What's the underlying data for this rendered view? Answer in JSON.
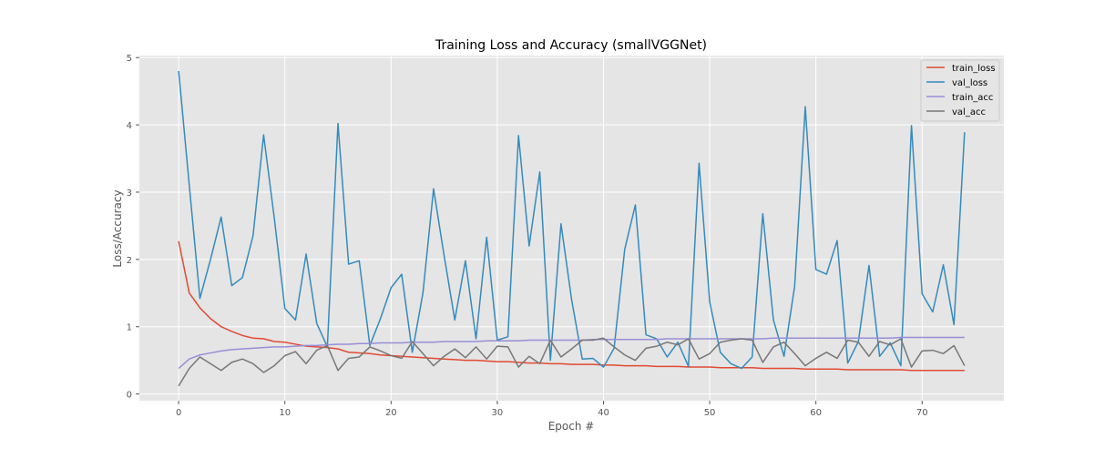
{
  "chart_data": {
    "type": "line",
    "title": "Training Loss and Accuracy (smallVGGNet)",
    "xlabel": "Epoch #",
    "ylabel": "Loss/Accuracy",
    "xlim": [
      -3.7,
      77.7
    ],
    "ylim": [
      -0.1,
      5.03
    ],
    "x_ticks": [
      0,
      10,
      20,
      30,
      40,
      50,
      60,
      70
    ],
    "y_ticks": [
      0,
      1,
      2,
      3,
      4,
      5
    ],
    "grid": true,
    "legend_position": "top-right",
    "series": [
      {
        "name": "train_loss",
        "color": "#E24A33",
        "values": [
          2.27,
          1.5,
          1.28,
          1.12,
          1.0,
          0.93,
          0.87,
          0.83,
          0.82,
          0.78,
          0.77,
          0.74,
          0.71,
          0.7,
          0.69,
          0.67,
          0.62,
          0.61,
          0.6,
          0.58,
          0.57,
          0.56,
          0.55,
          0.54,
          0.53,
          0.52,
          0.51,
          0.5,
          0.5,
          0.49,
          0.48,
          0.48,
          0.47,
          0.46,
          0.46,
          0.45,
          0.45,
          0.44,
          0.44,
          0.44,
          0.43,
          0.43,
          0.42,
          0.42,
          0.42,
          0.41,
          0.41,
          0.41,
          0.4,
          0.4,
          0.4,
          0.39,
          0.39,
          0.39,
          0.39,
          0.38,
          0.38,
          0.38,
          0.38,
          0.37,
          0.37,
          0.37,
          0.37,
          0.36,
          0.36,
          0.36,
          0.36,
          0.36,
          0.36,
          0.35,
          0.35,
          0.35,
          0.35,
          0.35,
          0.35
        ]
      },
      {
        "name": "val_loss",
        "color": "#348ABD",
        "values": [
          4.8,
          3.1,
          1.42,
          2.0,
          2.63,
          1.61,
          1.73,
          2.35,
          3.85,
          2.62,
          1.27,
          1.1,
          2.08,
          1.05,
          0.7,
          4.02,
          1.93,
          1.98,
          0.72,
          1.12,
          1.58,
          1.78,
          0.62,
          1.5,
          3.05,
          2.05,
          1.1,
          1.98,
          0.82,
          2.33,
          0.8,
          0.85,
          3.84,
          2.2,
          3.3,
          0.5,
          2.53,
          1.4,
          0.52,
          0.53,
          0.4,
          0.68,
          2.15,
          2.81,
          0.88,
          0.82,
          0.55,
          0.77,
          0.41,
          3.43,
          1.37,
          0.62,
          0.45,
          0.38,
          0.55,
          2.68,
          1.1,
          0.56,
          1.6,
          4.27,
          1.85,
          1.78,
          2.28,
          0.46,
          0.78,
          1.91,
          0.56,
          0.76,
          0.42,
          3.99,
          1.49,
          1.22,
          1.92,
          1.03,
          3.89
        ]
      },
      {
        "name": "train_acc",
        "color": "#988ED5",
        "values": [
          0.38,
          0.52,
          0.58,
          0.61,
          0.64,
          0.66,
          0.67,
          0.68,
          0.69,
          0.7,
          0.7,
          0.71,
          0.72,
          0.72,
          0.73,
          0.74,
          0.74,
          0.75,
          0.75,
          0.76,
          0.76,
          0.76,
          0.77,
          0.77,
          0.77,
          0.78,
          0.78,
          0.78,
          0.78,
          0.79,
          0.79,
          0.79,
          0.79,
          0.8,
          0.8,
          0.8,
          0.8,
          0.8,
          0.8,
          0.81,
          0.81,
          0.81,
          0.81,
          0.81,
          0.81,
          0.81,
          0.82,
          0.82,
          0.82,
          0.82,
          0.82,
          0.82,
          0.82,
          0.82,
          0.82,
          0.82,
          0.83,
          0.83,
          0.83,
          0.83,
          0.83,
          0.83,
          0.83,
          0.83,
          0.83,
          0.83,
          0.83,
          0.83,
          0.84,
          0.84,
          0.84,
          0.84,
          0.84,
          0.84,
          0.84
        ]
      },
      {
        "name": "val_acc",
        "color": "#777777",
        "values": [
          0.12,
          0.38,
          0.55,
          0.45,
          0.35,
          0.47,
          0.52,
          0.45,
          0.32,
          0.42,
          0.57,
          0.63,
          0.45,
          0.65,
          0.72,
          0.35,
          0.53,
          0.55,
          0.7,
          0.64,
          0.57,
          0.53,
          0.78,
          0.6,
          0.42,
          0.56,
          0.67,
          0.54,
          0.7,
          0.52,
          0.71,
          0.7,
          0.4,
          0.56,
          0.45,
          0.8,
          0.55,
          0.67,
          0.8,
          0.8,
          0.83,
          0.7,
          0.58,
          0.5,
          0.68,
          0.71,
          0.77,
          0.73,
          0.82,
          0.52,
          0.6,
          0.77,
          0.8,
          0.82,
          0.8,
          0.47,
          0.7,
          0.77,
          0.6,
          0.42,
          0.53,
          0.62,
          0.53,
          0.8,
          0.77,
          0.56,
          0.78,
          0.73,
          0.82,
          0.4,
          0.64,
          0.65,
          0.6,
          0.72,
          0.42
        ]
      }
    ]
  }
}
